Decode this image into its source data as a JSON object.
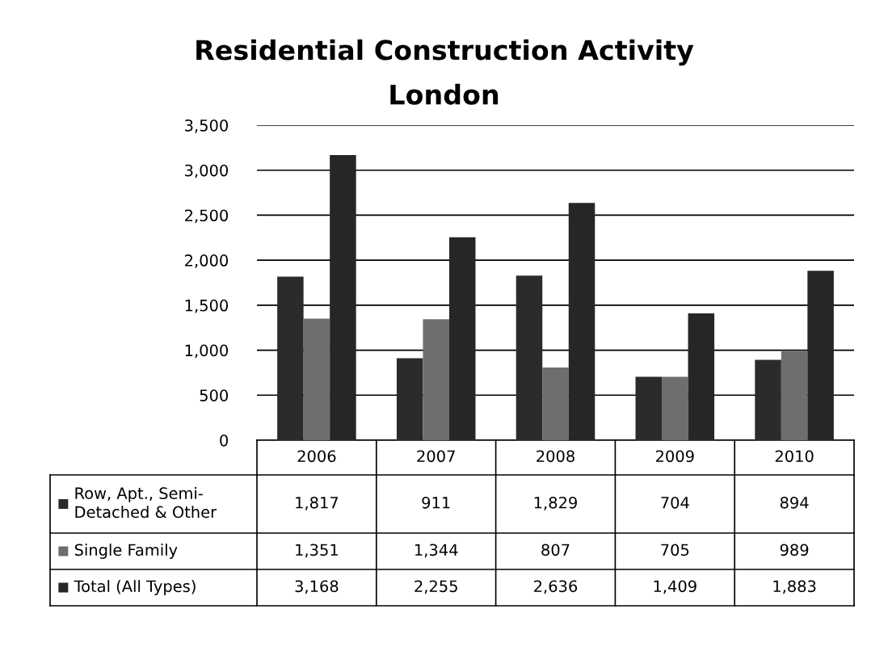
{
  "chart_data": {
    "type": "bar",
    "title": "Residential Construction Activity",
    "subtitle": "London",
    "categories": [
      "2006",
      "2007",
      "2008",
      "2009",
      "2010"
    ],
    "series": [
      {
        "name": "Row, Apt., Semi-Detached & Other",
        "color": "#2b2b2b",
        "values": [
          1817,
          911,
          1829,
          704,
          894
        ],
        "value_labels": [
          "1,817",
          "911",
          "1,829",
          "704",
          "894"
        ]
      },
      {
        "name": "Single Family",
        "color": "#6e6e6e",
        "values": [
          1351,
          1344,
          807,
          705,
          989
        ],
        "value_labels": [
          "1,351",
          "1,344",
          "807",
          "705",
          "989"
        ]
      },
      {
        "name": "Total (All Types)",
        "color": "#262626",
        "values": [
          3168,
          2255,
          2636,
          1409,
          1883
        ],
        "value_labels": [
          "3,168",
          "2,255",
          "2,636",
          "1,409",
          "1,883"
        ]
      }
    ],
    "ylim": [
      0,
      3500
    ],
    "yticks": [
      {
        "value": 0,
        "label": "0"
      },
      {
        "value": 500,
        "label": "500"
      },
      {
        "value": 1000,
        "label": "1,000"
      },
      {
        "value": 1500,
        "label": "1,500"
      },
      {
        "value": 2000,
        "label": "2,000"
      },
      {
        "value": 2500,
        "label": "2,500"
      },
      {
        "value": 3000,
        "label": "3,000"
      },
      {
        "value": 3500,
        "label": "3,500"
      }
    ],
    "grid": "y",
    "legend": "bottom left",
    "tick_labels": "y"
  }
}
